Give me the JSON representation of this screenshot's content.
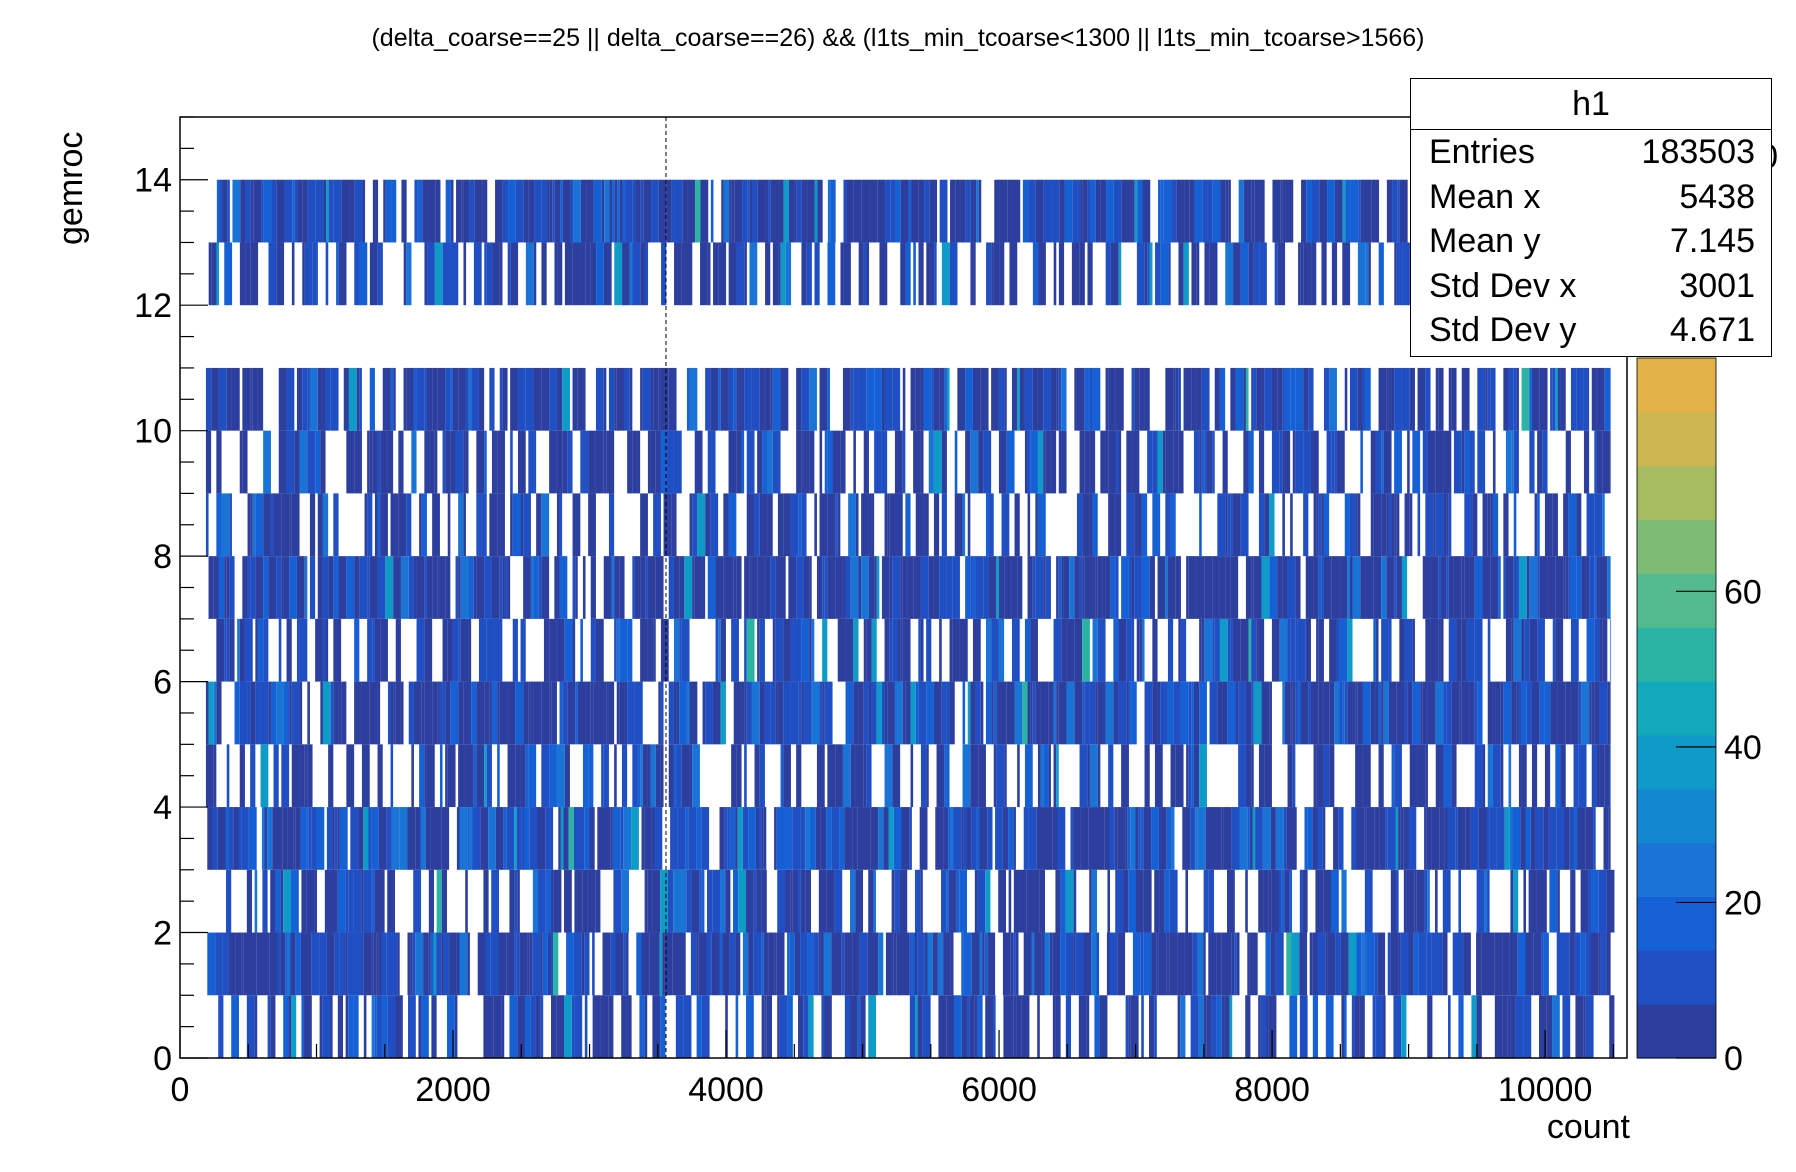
{
  "chart_data": {
    "type": "heatmap",
    "title": "(delta_coarse==25 || delta_coarse==26) && (l1ts_min_tcoarse<1300 || l1ts_min_tcoarse>1566)",
    "xlabel": "count",
    "ylabel": "gemroc",
    "xlim": [
      0,
      10600
    ],
    "ylim": [
      0,
      15
    ],
    "x_ticks": [
      "0",
      "2000",
      "4000",
      "6000",
      "8000",
      "10000"
    ],
    "y_ticks": [
      "0",
      "2",
      "4",
      "6",
      "8",
      "10",
      "12",
      "14"
    ],
    "z_ticks": [
      "0",
      "20",
      "40",
      "60"
    ],
    "zlim": [
      0,
      90
    ],
    "z_clipped_label": "0",
    "bin_height": 1,
    "rows": [
      {
        "y": 0,
        "x_start": 280,
        "x_end": 10560,
        "fill": 0.62
      },
      {
        "y": 1,
        "x_start": 200,
        "x_end": 10480,
        "fill": 0.9
      },
      {
        "y": 2,
        "x_start": 280,
        "x_end": 10560,
        "fill": 0.6
      },
      {
        "y": 3,
        "x_start": 200,
        "x_end": 10480,
        "fill": 0.92
      },
      {
        "y": 4,
        "x_start": 190,
        "x_end": 10480,
        "fill": 0.58
      },
      {
        "y": 5,
        "x_start": 190,
        "x_end": 10480,
        "fill": 0.9
      },
      {
        "y": 6,
        "x_start": 190,
        "x_end": 10480,
        "fill": 0.62
      },
      {
        "y": 7,
        "x_start": 190,
        "x_end": 10480,
        "fill": 0.92
      },
      {
        "y": 8,
        "x_start": 190,
        "x_end": 10480,
        "fill": 0.58
      },
      {
        "y": 9,
        "x_start": 190,
        "x_end": 10480,
        "fill": 0.62
      },
      {
        "y": 10,
        "x_start": 190,
        "x_end": 10480,
        "fill": 0.85
      },
      {
        "y": 12,
        "x_start": 210,
        "x_end": 10600,
        "fill": 0.58
      },
      {
        "y": 13,
        "x_start": 270,
        "x_end": 10600,
        "fill": 0.88
      }
    ],
    "dashed_line_x": 3560,
    "palette": [
      "#2c3e9e",
      "#1f4fc2",
      "#1560d4",
      "#1a74d6",
      "#1388cf",
      "#0e9bc7",
      "#12a9ba",
      "#2bb4a3",
      "#52ba8c",
      "#7cbc74",
      "#a7bb60",
      "#cdb752",
      "#e3b34a"
    ]
  },
  "stats": {
    "name": "h1",
    "rows": [
      {
        "label": "Entries",
        "value": "183503"
      },
      {
        "label": "Mean x",
        "value": "5438"
      },
      {
        "label": "Mean y",
        "value": "7.145"
      },
      {
        "label": "Std Dev x",
        "value": "3001"
      },
      {
        "label": "Std Dev y",
        "value": "4.671"
      }
    ]
  }
}
